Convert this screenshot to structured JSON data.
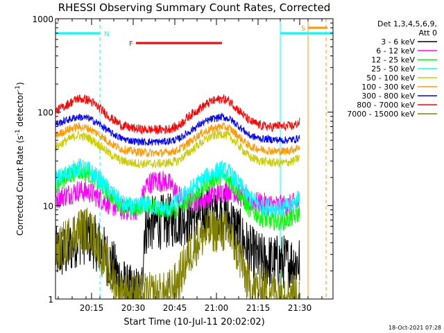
{
  "chart_data": {
    "type": "line",
    "title": "RHESSI Observing Summary Count Rates, Corrected",
    "xlabel": "Start Time (10-Jul-11 20:02:02)",
    "ylabel_main": "Corrected Count Rate (s",
    "ylabel_sup1": "-1",
    "ylabel_mid": " detector",
    "ylabel_sup2": "-1",
    "ylabel_end": ")",
    "yscale": "log",
    "ylim": [
      1,
      1000
    ],
    "y_ticks": [
      {
        "value": 1,
        "label": "1"
      },
      {
        "value": 10,
        "label": "10"
      },
      {
        "value": 100,
        "label": "100"
      },
      {
        "value": 1000,
        "label": "1000"
      }
    ],
    "x_range_minutes": [
      0,
      100
    ],
    "x_ticks": [
      {
        "minute": 13,
        "label": "20:15"
      },
      {
        "minute": 28,
        "label": "20:30"
      },
      {
        "minute": 43,
        "label": "20:45"
      },
      {
        "minute": 58,
        "label": "21:00"
      },
      {
        "minute": 73,
        "label": "21:15"
      },
      {
        "minute": 88,
        "label": "21:30"
      }
    ],
    "legend_header": [
      "Det 1,3,4,5,6,9,",
      "Att 0"
    ],
    "legend_position": "right",
    "series": [
      {
        "name": "3 - 6 keV",
        "color": "#000000",
        "points": [
          [
            0,
            3
          ],
          [
            4,
            3.2
          ],
          [
            8,
            4.5
          ],
          [
            12,
            4.6
          ],
          [
            16,
            3.6
          ],
          [
            20,
            2.4
          ],
          [
            24,
            1.5
          ],
          [
            26,
            1.2
          ],
          [
            31,
            1.1
          ],
          [
            32,
            5.5
          ],
          [
            35,
            6.5
          ],
          [
            40,
            6.8
          ],
          [
            45,
            7.2
          ],
          [
            50,
            7.8
          ],
          [
            55,
            8.5
          ],
          [
            60,
            8.3
          ],
          [
            63,
            7
          ],
          [
            66,
            5
          ],
          [
            70,
            3.2
          ],
          [
            74,
            2.6
          ],
          [
            78,
            2.5
          ],
          [
            82,
            2.5
          ],
          [
            86,
            2.5
          ],
          [
            88,
            2.5
          ]
        ],
        "noise": 0.3
      },
      {
        "name": "6 - 12 keV",
        "color": "#ff00ff",
        "points": [
          [
            0,
            12
          ],
          [
            4,
            13
          ],
          [
            8,
            14.5
          ],
          [
            12,
            14
          ],
          [
            16,
            12
          ],
          [
            20,
            10.2
          ],
          [
            24,
            9
          ],
          [
            28,
            9
          ],
          [
            30,
            9.5
          ],
          [
            33,
            17
          ],
          [
            36,
            18.5
          ],
          [
            40,
            18
          ],
          [
            42,
            16
          ],
          [
            45,
            12
          ],
          [
            48,
            11.2
          ],
          [
            52,
            11.5
          ],
          [
            56,
            12.5
          ],
          [
            60,
            14
          ],
          [
            63,
            15
          ],
          [
            66,
            13
          ],
          [
            70,
            11
          ],
          [
            75,
            10.5
          ],
          [
            80,
            10
          ],
          [
            84,
            10
          ],
          [
            88,
            11
          ]
        ],
        "noise": 0.12
      },
      {
        "name": "12 - 25 keV",
        "color": "#00ff00",
        "points": [
          [
            0,
            17
          ],
          [
            4,
            20
          ],
          [
            8,
            24
          ],
          [
            12,
            22
          ],
          [
            16,
            17
          ],
          [
            20,
            13
          ],
          [
            24,
            10
          ],
          [
            28,
            9
          ],
          [
            32,
            10.5
          ],
          [
            36,
            10
          ],
          [
            40,
            8.5
          ],
          [
            44,
            9
          ],
          [
            48,
            11.5
          ],
          [
            52,
            14.5
          ],
          [
            56,
            18.5
          ],
          [
            60,
            20.5
          ],
          [
            63,
            18.5
          ],
          [
            66,
            14
          ],
          [
            70,
            9
          ],
          [
            74,
            7.5
          ],
          [
            78,
            6.8
          ],
          [
            82,
            6.8
          ],
          [
            86,
            7.5
          ],
          [
            88,
            8.5
          ]
        ],
        "noise": 0.1
      },
      {
        "name": "25 - 50 keV",
        "color": "#00ffff",
        "points": [
          [
            0,
            19
          ],
          [
            4,
            22
          ],
          [
            8,
            26
          ],
          [
            12,
            24
          ],
          [
            16,
            19
          ],
          [
            20,
            14
          ],
          [
            24,
            10.5
          ],
          [
            28,
            9.5
          ],
          [
            32,
            10.5
          ],
          [
            36,
            9.5
          ],
          [
            40,
            9
          ],
          [
            44,
            11
          ],
          [
            48,
            14.5
          ],
          [
            52,
            18
          ],
          [
            56,
            22
          ],
          [
            60,
            24.5
          ],
          [
            63,
            22
          ],
          [
            66,
            17
          ],
          [
            70,
            12
          ],
          [
            74,
            10
          ],
          [
            78,
            9.5
          ],
          [
            82,
            9.5
          ],
          [
            86,
            10.5
          ],
          [
            88,
            13
          ]
        ],
        "noise": 0.1
      },
      {
        "name": "50 - 100 keV",
        "color": "#cccc00",
        "points": [
          [
            0,
            42
          ],
          [
            4,
            50
          ],
          [
            8,
            57
          ],
          [
            12,
            53
          ],
          [
            16,
            44
          ],
          [
            20,
            35
          ],
          [
            24,
            30
          ],
          [
            28,
            28.5
          ],
          [
            32,
            28
          ],
          [
            36,
            28
          ],
          [
            40,
            28.5
          ],
          [
            44,
            30
          ],
          [
            48,
            37
          ],
          [
            52,
            46
          ],
          [
            56,
            55
          ],
          [
            60,
            59
          ],
          [
            63,
            54
          ],
          [
            66,
            44
          ],
          [
            70,
            33
          ],
          [
            74,
            30
          ],
          [
            78,
            29
          ],
          [
            82,
            28.5
          ],
          [
            86,
            30
          ],
          [
            88,
            33
          ]
        ],
        "noise": 0.05
      },
      {
        "name": "100 - 300 keV",
        "color": "#ff9900",
        "points": [
          [
            0,
            56
          ],
          [
            4,
            64
          ],
          [
            8,
            70
          ],
          [
            12,
            67
          ],
          [
            16,
            57
          ],
          [
            20,
            46
          ],
          [
            24,
            40
          ],
          [
            28,
            38
          ],
          [
            32,
            37
          ],
          [
            36,
            36.5
          ],
          [
            40,
            37
          ],
          [
            44,
            39
          ],
          [
            48,
            47
          ],
          [
            52,
            58
          ],
          [
            56,
            66
          ],
          [
            60,
            71
          ],
          [
            63,
            66
          ],
          [
            66,
            55
          ],
          [
            70,
            43
          ],
          [
            74,
            40
          ],
          [
            78,
            38.5
          ],
          [
            82,
            38
          ],
          [
            86,
            40
          ],
          [
            88,
            43
          ]
        ],
        "noise": 0.045
      },
      {
        "name": "300 - 800 keV",
        "color": "#0000ff",
        "points": [
          [
            0,
            74
          ],
          [
            4,
            82
          ],
          [
            8,
            89
          ],
          [
            12,
            86
          ],
          [
            16,
            74
          ],
          [
            20,
            60
          ],
          [
            24,
            52
          ],
          [
            28,
            49
          ],
          [
            32,
            48
          ],
          [
            36,
            48
          ],
          [
            40,
            48.5
          ],
          [
            44,
            51
          ],
          [
            48,
            61
          ],
          [
            52,
            74
          ],
          [
            56,
            84
          ],
          [
            60,
            89
          ],
          [
            63,
            84
          ],
          [
            66,
            71
          ],
          [
            70,
            56
          ],
          [
            74,
            52
          ],
          [
            78,
            51
          ],
          [
            82,
            50
          ],
          [
            86,
            51
          ],
          [
            88,
            53
          ]
        ],
        "noise": 0.04
      },
      {
        "name": "800 - 7000 keV",
        "color": "#ff0000",
        "points": [
          [
            0,
            102
          ],
          [
            4,
            120
          ],
          [
            8,
            140
          ],
          [
            12,
            135
          ],
          [
            16,
            110
          ],
          [
            20,
            86
          ],
          [
            24,
            72
          ],
          [
            28,
            67
          ],
          [
            32,
            65
          ],
          [
            36,
            65
          ],
          [
            40,
            65.5
          ],
          [
            44,
            70
          ],
          [
            48,
            90
          ],
          [
            52,
            110
          ],
          [
            56,
            130
          ],
          [
            60,
            140
          ],
          [
            63,
            130
          ],
          [
            66,
            105
          ],
          [
            70,
            80
          ],
          [
            74,
            72
          ],
          [
            78,
            69
          ],
          [
            80,
            72
          ],
          [
            82,
            70
          ],
          [
            86,
            72
          ],
          [
            88,
            78
          ]
        ],
        "noise": 0.05
      },
      {
        "name": "7000 - 15000 keV",
        "color": "#808000",
        "points": [
          [
            0,
            3
          ],
          [
            4,
            4.2
          ],
          [
            8,
            5.5
          ],
          [
            12,
            5.5
          ],
          [
            15,
            4
          ],
          [
            18,
            2.5
          ],
          [
            21,
            1.5
          ],
          [
            24,
            1.1
          ],
          [
            40,
            1.1
          ],
          [
            44,
            1.5
          ],
          [
            48,
            3
          ],
          [
            52,
            4.5
          ],
          [
            56,
            5.5
          ],
          [
            60,
            5.5
          ],
          [
            63,
            4.8
          ],
          [
            66,
            3
          ],
          [
            68,
            2
          ],
          [
            70,
            1.3
          ],
          [
            88,
            1.2
          ]
        ],
        "noise": 0.25
      }
    ],
    "annotations": [
      {
        "label": "N",
        "color": "#00ffff",
        "y": 700,
        "x_start": 0,
        "x_end": 16
      },
      {
        "label": "F",
        "color": "#ff0000",
        "y": 550,
        "x_start": 29,
        "x_end": 60
      },
      {
        "label": "S",
        "color": "#ff9900",
        "y": 800,
        "x_start": 91,
        "x_end": 98
      }
    ],
    "vertical_markers": [
      {
        "minute": 16,
        "color": "#00ffff",
        "style": "dashed"
      },
      {
        "minute": 81,
        "color": "#00ffff",
        "style": "solid"
      },
      {
        "minute": 91,
        "color": "#ff9900",
        "style": "solid"
      },
      {
        "minute": 97.5,
        "color": "#ff9900",
        "style": "dashed"
      }
    ],
    "segments": [
      {
        "name": "N",
        "color": "#00ffff",
        "y": 700,
        "x_start": 81,
        "x_end": 100
      }
    ],
    "footer_date": "18-Oct-2021 07:28"
  }
}
